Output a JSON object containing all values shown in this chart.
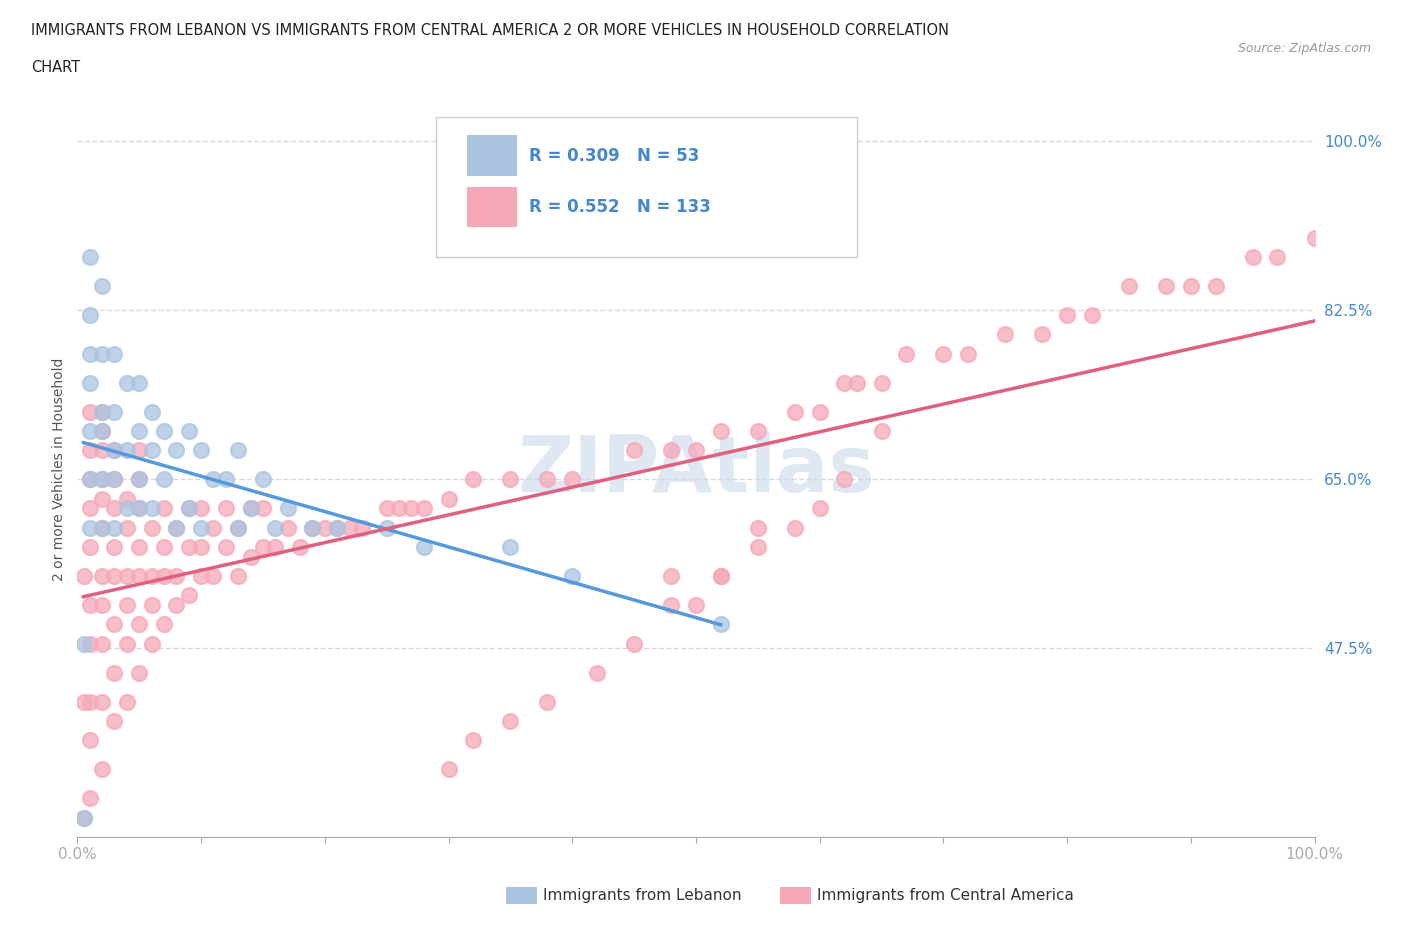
{
  "title_line1": "IMMIGRANTS FROM LEBANON VS IMMIGRANTS FROM CENTRAL AMERICA 2 OR MORE VEHICLES IN HOUSEHOLD CORRELATION",
  "title_line2": "CHART",
  "source_text": "Source: ZipAtlas.com",
  "ylabel": "2 or more Vehicles in Household",
  "xticklabels": [
    "0.0%",
    "",
    "",
    "",
    "",
    "",
    "",
    "",
    "",
    "",
    "100.0%"
  ],
  "xtick_values": [
    0,
    10,
    20,
    30,
    40,
    50,
    60,
    70,
    80,
    90,
    100
  ],
  "ytick_values": [
    47.5,
    65.0,
    82.5,
    100.0
  ],
  "ytick_labels": [
    "47.5%",
    "65.0%",
    "82.5%",
    "100.0%"
  ],
  "background_color": "#ffffff",
  "grid_color": "#d8d8d8",
  "legend_label_1": "Immigrants from Lebanon",
  "legend_label_2": "Immigrants from Central America",
  "R1": 0.309,
  "N1": 53,
  "R2": 0.552,
  "N2": 133,
  "color_lebanon": "#aac4e0",
  "color_central": "#f5a8b8",
  "trendline_color_lebanon": "#5599dd",
  "trendline_color_central": "#e06080",
  "watermark_color": "#c8d8ea",
  "legend_text_color": "#4488cc",
  "axis_text_color": "#4488cc",
  "tick_color": "#888888",
  "lebanon_x": [
    0.5,
    0.5,
    1,
    1,
    1,
    1,
    1,
    1,
    1,
    2,
    2,
    2,
    2,
    2,
    2,
    3,
    3,
    3,
    3,
    3,
    4,
    4,
    4,
    5,
    5,
    5,
    5,
    6,
    6,
    6,
    7,
    7,
    8,
    8,
    9,
    9,
    10,
    10,
    11,
    12,
    13,
    13,
    14,
    15,
    16,
    17,
    19,
    21,
    25,
    28,
    35,
    40,
    52
  ],
  "lebanon_y": [
    30,
    48,
    60,
    65,
    70,
    75,
    78,
    82,
    88,
    60,
    65,
    70,
    72,
    78,
    85,
    60,
    65,
    68,
    72,
    78,
    62,
    68,
    75,
    62,
    65,
    70,
    75,
    62,
    68,
    72,
    65,
    70,
    60,
    68,
    62,
    70,
    60,
    68,
    65,
    65,
    60,
    68,
    62,
    65,
    60,
    62,
    60,
    60,
    60,
    58,
    58,
    55,
    50
  ],
  "central_x": [
    0.5,
    0.5,
    0.5,
    1,
    1,
    1,
    1,
    1,
    1,
    1,
    1,
    1,
    1,
    2,
    2,
    2,
    2,
    2,
    2,
    2,
    2,
    2,
    2,
    2,
    3,
    3,
    3,
    3,
    3,
    3,
    3,
    3,
    4,
    4,
    4,
    4,
    4,
    4,
    5,
    5,
    5,
    5,
    5,
    5,
    5,
    6,
    6,
    6,
    6,
    7,
    7,
    7,
    7,
    8,
    8,
    8,
    9,
    9,
    9,
    10,
    10,
    10,
    11,
    11,
    12,
    12,
    13,
    13,
    14,
    14,
    15,
    15,
    16,
    17,
    18,
    19,
    20,
    21,
    22,
    23,
    25,
    26,
    27,
    28,
    30,
    32,
    35,
    38,
    40,
    45,
    48,
    50,
    52,
    55,
    58,
    60,
    62,
    63,
    65,
    67,
    70,
    72,
    75,
    78,
    80,
    82,
    85,
    88,
    90,
    92,
    95,
    97,
    100,
    52,
    48,
    50,
    55,
    62,
    65,
    60,
    58,
    55,
    52,
    48,
    45,
    42,
    38,
    35,
    32,
    30
  ],
  "central_y": [
    30,
    42,
    55,
    32,
    38,
    42,
    48,
    52,
    58,
    62,
    65,
    68,
    72,
    35,
    42,
    48,
    52,
    55,
    60,
    63,
    65,
    68,
    70,
    72,
    40,
    45,
    50,
    55,
    58,
    62,
    65,
    68,
    42,
    48,
    52,
    55,
    60,
    63,
    45,
    50,
    55,
    58,
    62,
    65,
    68,
    48,
    52,
    55,
    60,
    50,
    55,
    58,
    62,
    52,
    55,
    60,
    53,
    58,
    62,
    55,
    58,
    62,
    55,
    60,
    58,
    62,
    55,
    60,
    57,
    62,
    58,
    62,
    58,
    60,
    58,
    60,
    60,
    60,
    60,
    60,
    62,
    62,
    62,
    62,
    63,
    65,
    65,
    65,
    65,
    68,
    68,
    68,
    70,
    70,
    72,
    72,
    75,
    75,
    75,
    78,
    78,
    78,
    80,
    80,
    82,
    82,
    85,
    85,
    85,
    85,
    88,
    88,
    90,
    55,
    55,
    52,
    60,
    65,
    70,
    62,
    60,
    58,
    55,
    52,
    48,
    45,
    42,
    40,
    38,
    35
  ]
}
